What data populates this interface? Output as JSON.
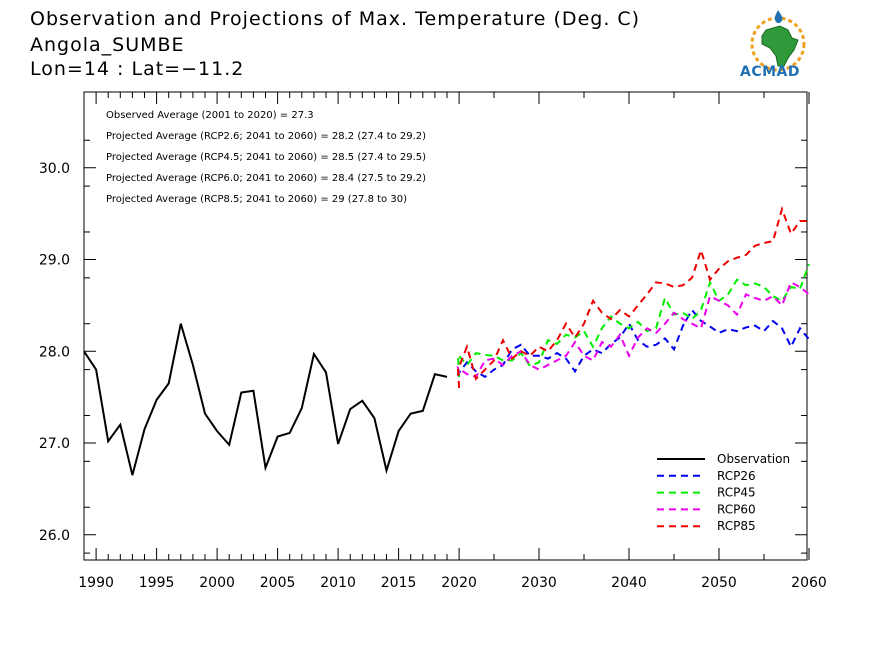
{
  "header": {
    "title": "Observation and Projections of Max. Temperature (Deg. C)",
    "location": "Angola_SUMBE",
    "coords": "Lon=14 : Lat=−11.2"
  },
  "logo": {
    "text": "ACMAD"
  },
  "colors": {
    "observation": "#000000",
    "rcp26": "#0000ee",
    "rcp45": "#00ee00",
    "rcp60": "#ee00ee",
    "rcp85": "#ee0000"
  },
  "chart_data": {
    "type": "line",
    "title": "Observation and Projections of Max. Temperature (Deg. C)",
    "xlabel": "",
    "ylabel": "",
    "xlim": [
      1989,
      2060
    ],
    "ylim": [
      25.7,
      30.5
    ],
    "grid": false,
    "legend_position": "bottom-right",
    "x_ticks": [
      "1990",
      "1995",
      "2000",
      "2005",
      "2010",
      "2015",
      "2020",
      "2030",
      "2040",
      "2050",
      "2060"
    ],
    "y_ticks": [
      "26.0",
      "27.0",
      "28.0",
      "29.0",
      "30.0"
    ],
    "annotations": [
      "Observed Average (2001 to 2020) = 27.3",
      "Projected Average (RCP2.6; 2041 to 2060) = 28.2 (27.4 to 29.2)",
      "Projected Average (RCP4.5; 2041 to 2060) = 28.5 (27.4 to 29.5)",
      "Projected Average (RCP6.0; 2041 to 2060) = 28.4 (27.5 to 29.2)",
      "Projected Average (RCP8.5; 2041 to 2060) = 29 (27.8 to 30)"
    ],
    "series": [
      {
        "name": "Observation",
        "style": "solid",
        "x": [
          1989,
          1990,
          1991,
          1992,
          1993,
          1994,
          1995,
          1996,
          1997,
          1998,
          1999,
          2000,
          2001,
          2002,
          2003,
          2004,
          2005,
          2006,
          2007,
          2008,
          2009,
          2010,
          2011,
          2012,
          2013,
          2014,
          2015,
          2016,
          2017,
          2018,
          2019
        ],
        "values": [
          28.0,
          27.8,
          27.02,
          27.2,
          26.65,
          27.15,
          27.47,
          27.65,
          28.3,
          27.85,
          27.32,
          27.13,
          26.98,
          27.55,
          27.57,
          26.73,
          27.07,
          27.11,
          27.38,
          27.97,
          27.77,
          26.99,
          27.37,
          27.46,
          27.27,
          26.7,
          27.13,
          27.32,
          27.35,
          27.75,
          27.72
        ]
      },
      {
        "name": "RCP26",
        "style": "dashed",
        "x": [
          2020,
          2021,
          2022,
          2023,
          2024,
          2025,
          2026,
          2027,
          2028,
          2029,
          2030,
          2031,
          2032,
          2033,
          2034,
          2035,
          2036,
          2037,
          2038,
          2039,
          2040,
          2041,
          2042,
          2043,
          2044,
          2045,
          2046,
          2047,
          2048,
          2049,
          2050,
          2051,
          2052,
          2053,
          2054,
          2055,
          2056,
          2057,
          2058,
          2059,
          2060
        ],
        "values": [
          27.72,
          27.75,
          27.88,
          27.78,
          27.72,
          27.8,
          27.85,
          28.02,
          28.07,
          27.95,
          27.95,
          27.92,
          27.98,
          27.92,
          27.78,
          27.95,
          28.02,
          27.98,
          28.08,
          28.15,
          28.3,
          28.12,
          28.05,
          28.07,
          28.14,
          28.02,
          28.28,
          28.45,
          28.33,
          28.27,
          28.2,
          28.24,
          28.22,
          28.26,
          28.28,
          28.22,
          28.33,
          28.25,
          28.05,
          28.25,
          28.13
        ]
      },
      {
        "name": "RCP45",
        "style": "dashed",
        "x": [
          2020,
          2021,
          2022,
          2023,
          2024,
          2025,
          2026,
          2027,
          2028,
          2029,
          2030,
          2031,
          2032,
          2033,
          2034,
          2035,
          2036,
          2037,
          2038,
          2039,
          2040,
          2041,
          2042,
          2043,
          2044,
          2045,
          2046,
          2047,
          2048,
          2049,
          2050,
          2051,
          2052,
          2053,
          2054,
          2055,
          2056,
          2057,
          2058,
          2059,
          2060
        ],
        "values": [
          27.72,
          27.96,
          27.85,
          27.98,
          27.96,
          27.95,
          27.9,
          27.9,
          27.98,
          27.84,
          27.88,
          28.12,
          28.08,
          28.18,
          28.15,
          28.22,
          28.05,
          28.25,
          28.38,
          28.3,
          28.25,
          28.32,
          28.22,
          28.25,
          28.58,
          28.4,
          28.42,
          28.35,
          28.45,
          28.75,
          28.55,
          28.62,
          28.78,
          28.72,
          28.74,
          28.7,
          28.6,
          28.55,
          28.7,
          28.68,
          28.95
        ]
      },
      {
        "name": "RCP60",
        "style": "dashed",
        "x": [
          2020,
          2021,
          2022,
          2023,
          2024,
          2025,
          2026,
          2027,
          2028,
          2029,
          2030,
          2031,
          2032,
          2033,
          2034,
          2035,
          2036,
          2037,
          2038,
          2039,
          2040,
          2041,
          2042,
          2043,
          2044,
          2045,
          2046,
          2047,
          2048,
          2049,
          2050,
          2051,
          2052,
          2053,
          2054,
          2055,
          2056,
          2057,
          2058,
          2059,
          2060
        ],
        "values": [
          27.75,
          27.82,
          27.75,
          27.72,
          27.9,
          27.92,
          27.85,
          27.95,
          28.0,
          27.85,
          27.8,
          27.85,
          27.9,
          27.95,
          28.1,
          27.95,
          27.9,
          28.1,
          28.05,
          28.18,
          27.95,
          28.15,
          28.25,
          28.2,
          28.3,
          28.42,
          28.35,
          28.3,
          28.25,
          28.6,
          28.55,
          28.5,
          28.4,
          28.62,
          28.58,
          28.55,
          28.6,
          28.5,
          28.75,
          28.7,
          28.62
        ]
      },
      {
        "name": "RCP85",
        "style": "dashed",
        "x": [
          2020,
          2021,
          2022,
          2023,
          2024,
          2025,
          2026,
          2027,
          2028,
          2029,
          2030,
          2031,
          2032,
          2033,
          2034,
          2035,
          2036,
          2037,
          2038,
          2039,
          2040,
          2041,
          2042,
          2043,
          2044,
          2045,
          2046,
          2047,
          2048,
          2049,
          2050,
          2051,
          2052,
          2053,
          2054,
          2055,
          2056,
          2057,
          2058,
          2059,
          2060
        ],
        "values": [
          27.6,
          27.8,
          28.05,
          27.7,
          27.8,
          27.9,
          28.12,
          27.92,
          28.0,
          27.95,
          28.05,
          28.0,
          28.12,
          28.3,
          28.15,
          28.3,
          28.55,
          28.42,
          28.35,
          28.45,
          28.38,
          28.5,
          28.62,
          28.75,
          28.74,
          28.7,
          28.72,
          28.8,
          29.1,
          28.78,
          28.9,
          28.98,
          29.02,
          29.05,
          29.15,
          29.18,
          29.2,
          29.55,
          29.28,
          29.42,
          29.42
        ]
      }
    ]
  }
}
